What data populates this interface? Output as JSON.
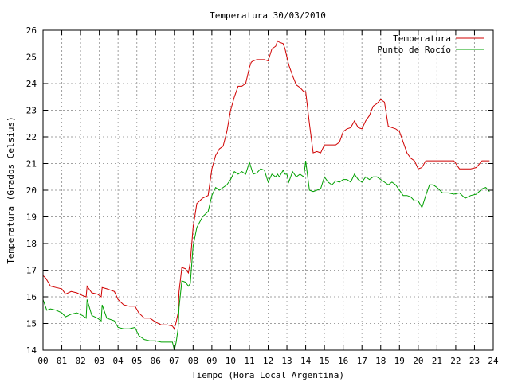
{
  "chart_data": {
    "type": "line",
    "title": "Temperatura 30/03/2010",
    "xlabel": "Tiempo (Hora Local Argentina)",
    "ylabel": "Temperatura (Grados Celsius)",
    "xlim": [
      0,
      24
    ],
    "ylim": [
      14,
      26
    ],
    "x_ticks": [
      0,
      1,
      2,
      3,
      4,
      5,
      6,
      7,
      8,
      9,
      10,
      11,
      12,
      13,
      14,
      15,
      16,
      17,
      18,
      19,
      20,
      21,
      22,
      23,
      24
    ],
    "x_tick_labels": [
      "00",
      "01",
      "02",
      "03",
      "04",
      "05",
      "06",
      "07",
      "08",
      "09",
      "10",
      "11",
      "12",
      "13",
      "14",
      "15",
      "16",
      "17",
      "18",
      "19",
      "20",
      "21",
      "22",
      "23",
      "24"
    ],
    "y_ticks": [
      14,
      15,
      16,
      17,
      18,
      19,
      20,
      21,
      22,
      23,
      24,
      25,
      26
    ],
    "y_tick_labels": [
      "14",
      "15",
      "16",
      "17",
      "18",
      "19",
      "20",
      "21",
      "22",
      "23",
      "24",
      "25",
      "26"
    ],
    "grid": true,
    "legend_position": "top-right",
    "series": [
      {
        "name": "Temperatura",
        "color": "#d00000",
        "x": [
          0,
          0.15,
          0.4,
          0.7,
          1.0,
          1.2,
          1.5,
          1.8,
          2.1,
          2.3,
          2.35,
          2.6,
          2.9,
          3.1,
          3.15,
          3.4,
          3.8,
          4.0,
          4.3,
          4.6,
          4.9,
          5.1,
          5.4,
          5.7,
          6.0,
          6.3,
          6.6,
          6.9,
          7.0,
          7.1,
          7.2,
          7.25,
          7.4,
          7.6,
          7.75,
          7.85,
          8.0,
          8.2,
          8.5,
          8.8,
          9.0,
          9.2,
          9.4,
          9.6,
          9.8,
          10.0,
          10.2,
          10.4,
          10.6,
          10.8,
          11.0,
          11.1,
          11.2,
          11.4,
          11.6,
          11.8,
          12.0,
          12.2,
          12.4,
          12.5,
          12.6,
          12.8,
          12.9,
          13.0,
          13.1,
          13.3,
          13.5,
          13.7,
          13.9,
          14.0,
          14.2,
          14.4,
          14.6,
          14.8,
          15.0,
          15.2,
          15.4,
          15.6,
          15.8,
          16.0,
          16.2,
          16.4,
          16.6,
          16.8,
          17.0,
          17.2,
          17.4,
          17.6,
          17.8,
          18.0,
          18.2,
          18.4,
          18.6,
          18.8,
          19.0,
          19.2,
          19.4,
          19.6,
          19.8,
          20.0,
          20.2,
          20.4,
          20.6,
          20.8,
          21.0,
          21.3,
          21.6,
          21.9,
          22.2,
          22.5,
          22.8,
          23.1,
          23.4,
          23.6,
          23.8
        ],
        "y": [
          16.8,
          16.7,
          16.4,
          16.35,
          16.3,
          16.1,
          16.2,
          16.15,
          16.05,
          16.0,
          16.4,
          16.15,
          16.1,
          16.0,
          16.35,
          16.3,
          16.2,
          15.9,
          15.7,
          15.65,
          15.65,
          15.4,
          15.2,
          15.2,
          15.05,
          14.95,
          14.95,
          14.9,
          14.8,
          15.05,
          15.4,
          16.2,
          17.1,
          17.05,
          16.9,
          17.3,
          18.6,
          19.5,
          19.7,
          19.8,
          20.8,
          21.3,
          21.55,
          21.65,
          22.2,
          23.0,
          23.5,
          23.9,
          23.9,
          24.0,
          24.6,
          24.8,
          24.85,
          24.9,
          24.9,
          24.9,
          24.85,
          25.3,
          25.4,
          25.6,
          25.55,
          25.5,
          25.3,
          25.0,
          24.7,
          24.3,
          23.95,
          23.85,
          23.7,
          23.7,
          22.5,
          21.4,
          21.45,
          21.4,
          21.7,
          21.7,
          21.7,
          21.7,
          21.8,
          22.2,
          22.3,
          22.35,
          22.6,
          22.35,
          22.3,
          22.6,
          22.8,
          23.15,
          23.25,
          23.4,
          23.3,
          22.4,
          22.35,
          22.3,
          22.2,
          21.8,
          21.4,
          21.2,
          21.1,
          20.8,
          20.85,
          21.1,
          21.1,
          21.1,
          21.1,
          21.1,
          21.1,
          21.1,
          20.8,
          20.8,
          20.8,
          20.85,
          21.1,
          21.1,
          21.1
        ]
      },
      {
        "name": "Punto de Rocío",
        "color": "#00a000",
        "x": [
          0,
          0.2,
          0.4,
          0.7,
          1.0,
          1.2,
          1.5,
          1.8,
          2.1,
          2.3,
          2.35,
          2.6,
          2.9,
          3.1,
          3.15,
          3.4,
          3.8,
          4.0,
          4.3,
          4.6,
          4.9,
          5.1,
          5.4,
          5.7,
          6.0,
          6.3,
          6.6,
          6.9,
          7.0,
          7.1,
          7.2,
          7.25,
          7.4,
          7.6,
          7.75,
          7.85,
          8.0,
          8.2,
          8.5,
          8.8,
          9.0,
          9.2,
          9.4,
          9.6,
          9.8,
          10.0,
          10.2,
          10.4,
          10.6,
          10.8,
          11.0,
          11.2,
          11.4,
          11.6,
          11.8,
          12.0,
          12.2,
          12.4,
          12.5,
          12.6,
          12.8,
          12.9,
          13.0,
          13.1,
          13.3,
          13.5,
          13.7,
          13.9,
          14.0,
          14.2,
          14.4,
          14.6,
          14.8,
          15.0,
          15.2,
          15.4,
          15.6,
          15.8,
          16.0,
          16.2,
          16.4,
          16.6,
          16.8,
          17.0,
          17.2,
          17.4,
          17.6,
          17.8,
          18.0,
          18.2,
          18.4,
          18.6,
          18.8,
          19.0,
          19.2,
          19.4,
          19.6,
          19.8,
          20.0,
          20.2,
          20.4,
          20.6,
          20.8,
          21.0,
          21.3,
          21.6,
          21.9,
          22.2,
          22.5,
          22.8,
          23.1,
          23.4,
          23.6,
          23.8
        ],
        "y": [
          15.9,
          15.5,
          15.55,
          15.5,
          15.4,
          15.25,
          15.35,
          15.4,
          15.3,
          15.2,
          15.9,
          15.3,
          15.2,
          15.1,
          15.7,
          15.2,
          15.1,
          14.85,
          14.8,
          14.8,
          14.85,
          14.55,
          14.4,
          14.35,
          14.35,
          14.3,
          14.3,
          14.3,
          14.0,
          14.3,
          14.8,
          15.6,
          16.6,
          16.55,
          16.4,
          16.5,
          17.9,
          18.6,
          19.0,
          19.2,
          19.8,
          20.1,
          20.0,
          20.1,
          20.2,
          20.4,
          20.7,
          20.6,
          20.7,
          20.6,
          21.05,
          20.6,
          20.65,
          20.8,
          20.75,
          20.3,
          20.6,
          20.5,
          20.6,
          20.5,
          20.75,
          20.6,
          20.6,
          20.3,
          20.7,
          20.5,
          20.6,
          20.5,
          21.1,
          20.0,
          19.95,
          20.0,
          20.05,
          20.5,
          20.3,
          20.2,
          20.35,
          20.3,
          20.4,
          20.4,
          20.3,
          20.6,
          20.4,
          20.3,
          20.5,
          20.4,
          20.5,
          20.5,
          20.4,
          20.3,
          20.2,
          20.3,
          20.2,
          20.0,
          19.8,
          19.8,
          19.75,
          19.6,
          19.6,
          19.35,
          19.8,
          20.2,
          20.2,
          20.1,
          19.9,
          19.9,
          19.85,
          19.9,
          19.7,
          19.8,
          19.85,
          20.05,
          20.1,
          19.95
        ]
      }
    ]
  }
}
